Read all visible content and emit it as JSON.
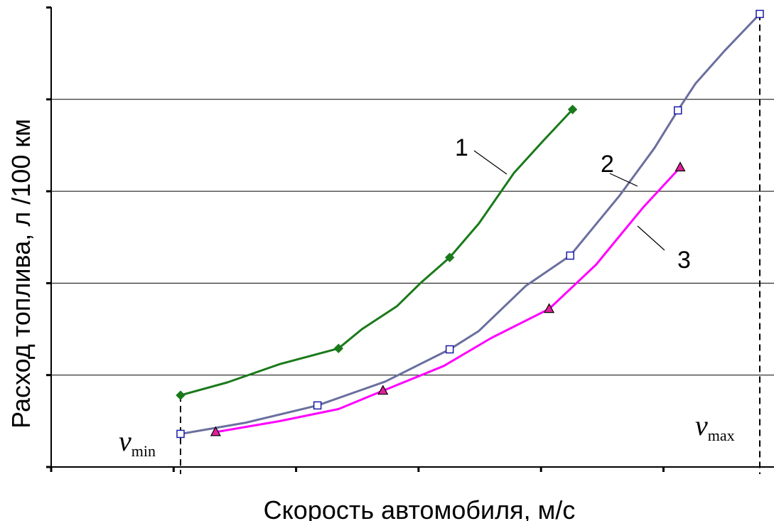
{
  "chart_data": {
    "type": "line",
    "xlabel": "Скорость автомобиля, м/с",
    "ylabel": "Расход топлива, л /100 км",
    "xlim": [
      0,
      6
    ],
    "ylim": [
      0,
      5
    ],
    "grid": true,
    "legend": "none",
    "series": [
      {
        "label": "1",
        "color": "#1a7a1a",
        "marker": "diamond",
        "points": [
          [
            1.05,
            0.78
          ],
          [
            2.4,
            1.29
          ],
          [
            3.35,
            2.28
          ],
          [
            4.4,
            3.89
          ]
        ],
        "curve": [
          [
            1.05,
            0.78
          ],
          [
            1.45,
            0.92
          ],
          [
            1.9,
            1.12
          ],
          [
            2.4,
            1.29
          ],
          [
            2.6,
            1.5
          ],
          [
            2.9,
            1.75
          ],
          [
            3.1,
            2.0
          ],
          [
            3.35,
            2.28
          ],
          [
            3.6,
            2.65
          ],
          [
            3.9,
            3.2
          ],
          [
            4.15,
            3.55
          ],
          [
            4.4,
            3.89
          ]
        ]
      },
      {
        "label": "2",
        "color": "#6a6f9e",
        "marker": "square",
        "points": [
          [
            1.05,
            0.36
          ],
          [
            2.22,
            0.67
          ],
          [
            3.35,
            1.28
          ],
          [
            4.38,
            2.3
          ],
          [
            5.3,
            3.88
          ],
          [
            6.0,
            4.93
          ]
        ],
        "curve": [
          [
            1.05,
            0.36
          ],
          [
            1.6,
            0.48
          ],
          [
            2.22,
            0.67
          ],
          [
            2.8,
            0.93
          ],
          [
            3.35,
            1.28
          ],
          [
            3.6,
            1.48
          ],
          [
            4.0,
            1.97
          ],
          [
            4.38,
            2.3
          ],
          [
            4.8,
            2.95
          ],
          [
            5.1,
            3.47
          ],
          [
            5.3,
            3.88
          ],
          [
            5.45,
            4.17
          ],
          [
            5.7,
            4.53
          ],
          [
            6.0,
            4.93
          ]
        ]
      },
      {
        "label": "3",
        "color": "#ff00ff",
        "marker": "triangle",
        "points": [
          [
            1.35,
            0.38
          ],
          [
            2.78,
            0.83
          ],
          [
            4.2,
            1.72
          ],
          [
            5.32,
            3.26
          ]
        ],
        "curve": [
          [
            1.35,
            0.38
          ],
          [
            1.9,
            0.5
          ],
          [
            2.4,
            0.63
          ],
          [
            2.78,
            0.83
          ],
          [
            3.3,
            1.1
          ],
          [
            3.7,
            1.4
          ],
          [
            4.2,
            1.72
          ],
          [
            4.6,
            2.2
          ],
          [
            5.0,
            2.82
          ],
          [
            5.32,
            3.26
          ]
        ]
      }
    ],
    "annotations": [
      {
        "text": "v",
        "subscript": "min",
        "x": 1.05
      },
      {
        "text": "v",
        "subscript": "max",
        "x": 6.0
      }
    ]
  }
}
